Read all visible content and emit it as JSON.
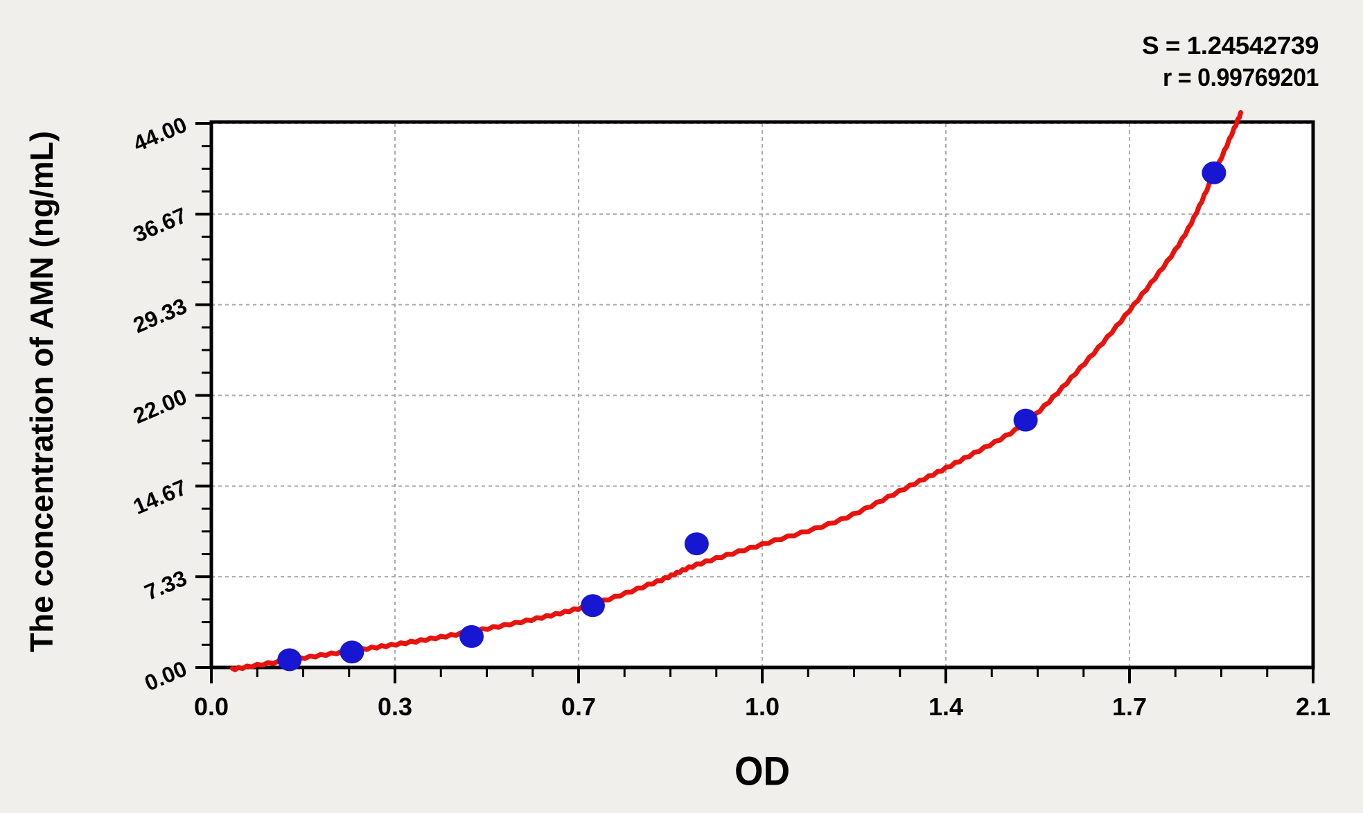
{
  "annotation": {
    "s_line": "S = 1.24542739",
    "r_line": "r = 0.99769201"
  },
  "chart_data": {
    "type": "scatter",
    "title": "",
    "xlabel": "OD",
    "ylabel": "The concentration of AMN (ng/mL)",
    "xlim": [
      0.0,
      2.1
    ],
    "ylim": [
      0.0,
      44.0
    ],
    "grid": "dashed-on-major-ticks",
    "legend_position": "none",
    "x_tick_labels": [
      "0.0",
      "0.3",
      "0.7",
      "1.0",
      "1.4",
      "1.7",
      "2.1"
    ],
    "x_tick_values": [
      0,
      0.35,
      0.7,
      1.05,
      1.4,
      1.75,
      2.1
    ],
    "x_minor_divisions": 4,
    "y_tick_labels": [
      "0.00",
      "7.33",
      "14.67",
      "22.00",
      "29.33",
      "36.67",
      "44.00"
    ],
    "y_tick_values": [
      0,
      7.3333,
      14.6667,
      22,
      29.3333,
      36.6667,
      44
    ],
    "y_minor_divisions": 4,
    "series": [
      {
        "name": "standard-points",
        "type": "scatter",
        "od": [
          0.149,
          0.268,
          0.496,
          0.727,
          0.925,
          1.552,
          1.911
        ],
        "concentration": [
          0.625,
          1.25,
          2.5,
          5,
          10,
          20,
          40
        ]
      },
      {
        "name": "fitted-curve",
        "type": "line",
        "samples": [
          [
            0.04,
            -0.15
          ],
          [
            0.149,
            0.6
          ],
          [
            0.268,
            1.35
          ],
          [
            0.38,
            2.05
          ],
          [
            0.496,
            2.9
          ],
          [
            0.62,
            3.95
          ],
          [
            0.727,
            5.1
          ],
          [
            0.85,
            6.95
          ],
          [
            0.925,
            8.3
          ],
          [
            1.05,
            9.95
          ],
          [
            1.2,
            11.95
          ],
          [
            1.331,
            14.67
          ],
          [
            1.435,
            16.9
          ],
          [
            1.552,
            19.8
          ],
          [
            1.656,
            24.2
          ],
          [
            1.758,
            29.3
          ],
          [
            1.85,
            34.6
          ],
          [
            1.911,
            39.9
          ],
          [
            1.962,
            44.8
          ]
        ]
      }
    ],
    "fit_constants": {
      "S": 1.24542739,
      "r": 0.99769201
    }
  },
  "colors": {
    "background": "#f0efec",
    "plot_background": "#ffffff",
    "grid": "#aaaaaa",
    "axis": "#000000",
    "curve": "#e8130d",
    "point": "#1717d1",
    "text": "#000000"
  }
}
